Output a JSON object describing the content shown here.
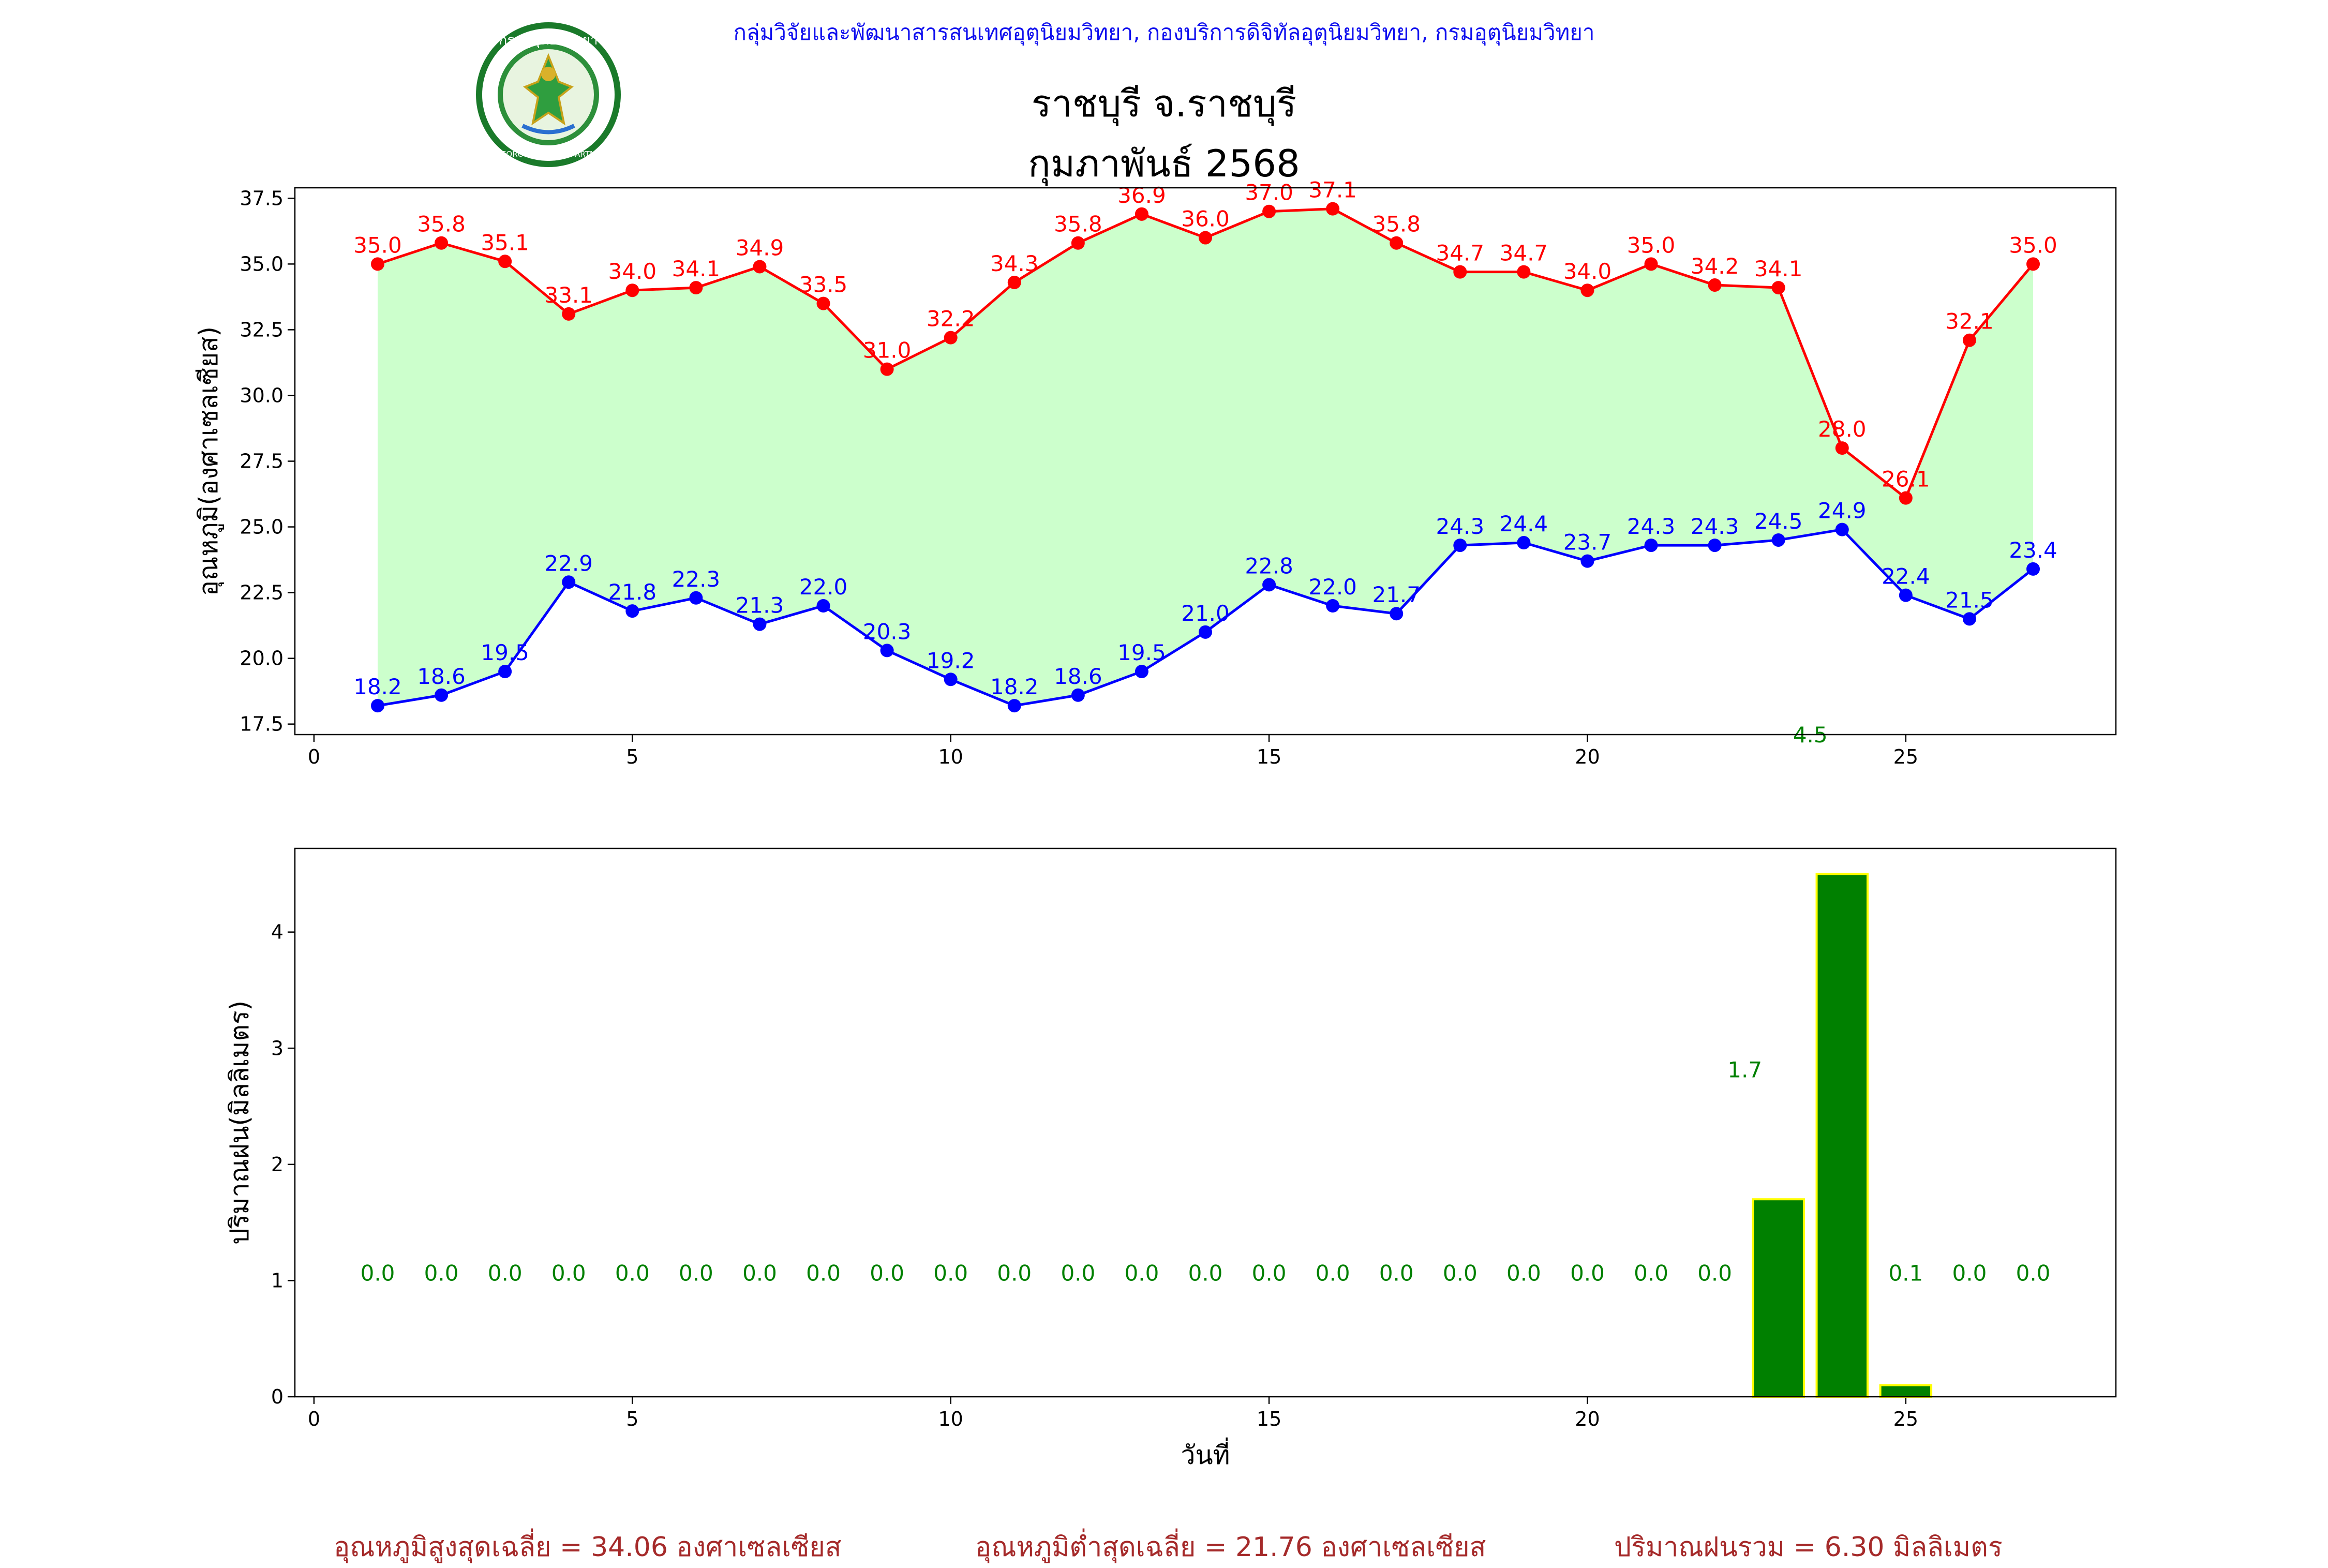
{
  "header": {
    "credit": "กลุ่มวิจัยและพัฒนาสารสนเทศอุตุนิยมวิทยา, กองบริการดิจิทัลอุตุนิยมวิทยา, กรมอุตุนิยมวิทยา",
    "title_station": "ราชบุรี จ.ราชบุรี",
    "title_period": "กุมภาพันธ์ 2568",
    "logo_text_th": "กรมอุตุนิยมวิทยา",
    "logo_text_en": "METEOROLOGICAL DEPARTMENT"
  },
  "chart_data": [
    {
      "type": "line",
      "title": "",
      "xlabel": "",
      "ylabel": "อุณหภูมิ(องศาเซลเซียส)",
      "x": [
        1,
        2,
        3,
        4,
        5,
        6,
        7,
        8,
        9,
        10,
        11,
        12,
        13,
        14,
        15,
        16,
        17,
        18,
        19,
        20,
        21,
        22,
        23,
        24,
        25,
        26,
        27
      ],
      "xlim": [
        -0.3,
        28.3
      ],
      "ylim": [
        17.1,
        37.9
      ],
      "xticks": [
        0,
        5,
        10,
        15,
        20,
        25
      ],
      "yticks": [
        17.5,
        20.0,
        22.5,
        25.0,
        27.5,
        30.0,
        32.5,
        35.0,
        37.5
      ],
      "fill_between": {
        "color": "#ccffcc"
      },
      "series": [
        {
          "color": "#ff0000",
          "values": [
            35.0,
            35.8,
            35.1,
            33.1,
            34.0,
            34.1,
            34.9,
            33.5,
            31.0,
            32.2,
            34.3,
            35.8,
            36.9,
            36.0,
            37.0,
            37.1,
            35.8,
            34.7,
            34.7,
            34.0,
            35.0,
            34.2,
            34.1,
            28.0,
            26.1,
            32.1,
            35.0
          ]
        },
        {
          "color": "#0000ff",
          "values": [
            18.2,
            18.6,
            19.5,
            22.9,
            21.8,
            22.3,
            21.3,
            22.0,
            20.3,
            19.2,
            18.2,
            18.6,
            19.5,
            21.0,
            22.8,
            22.0,
            21.7,
            24.3,
            24.4,
            23.7,
            24.3,
            24.3,
            24.5,
            24.9,
            22.4,
            21.5,
            23.4
          ]
        }
      ],
      "annotations": [
        {
          "text": "4.5",
          "x": 23.5,
          "y": 16.8,
          "color": "#008000"
        }
      ]
    },
    {
      "type": "bar",
      "title": "",
      "xlabel": "วันที่",
      "ylabel": "ปริมาณฝน(มิลลิเมตร)",
      "x": [
        1,
        2,
        3,
        4,
        5,
        6,
        7,
        8,
        9,
        10,
        11,
        12,
        13,
        14,
        15,
        16,
        17,
        18,
        19,
        20,
        21,
        22,
        23,
        24,
        25,
        26,
        27
      ],
      "values": [
        0.0,
        0.0,
        0.0,
        0.0,
        0.0,
        0.0,
        0.0,
        0.0,
        0.0,
        0.0,
        0.0,
        0.0,
        0.0,
        0.0,
        0.0,
        0.0,
        0.0,
        0.0,
        0.0,
        0.0,
        0.0,
        0.0,
        1.7,
        4.5,
        0.1,
        0.0,
        0.0
      ],
      "labels": [
        "0.0",
        "0.0",
        "0.0",
        "0.0",
        "0.0",
        "0.0",
        "0.0",
        "0.0",
        "0.0",
        "0.0",
        "0.0",
        "0.0",
        "0.0",
        "0.0",
        "0.0",
        "0.0",
        "0.0",
        "0.0",
        "0.0",
        "0.0",
        "0.0",
        "0.0",
        "1.7",
        "",
        "0.1",
        "0.0",
        "0.0"
      ],
      "xlim": [
        -0.3,
        28.3
      ],
      "ylim": [
        0,
        4.72
      ],
      "xticks": [
        0,
        5,
        10,
        15,
        20,
        25
      ],
      "yticks": [
        0,
        1,
        2,
        3,
        4
      ],
      "bar_color": "#008000",
      "bar_edge": "#ffff00",
      "label_color": "#008000"
    }
  ],
  "footer": {
    "avg_max": "อุณหภูมิสูงสุดเฉลี่ย = 34.06 องศาเซลเซียส",
    "avg_min": "อุณหภูมิต่ำสุดเฉลี่ย = 21.76 องศาเซลเซียส",
    "rain_total": "ปริมาณฝนรวม = 6.30 มิลลิเมตร"
  }
}
